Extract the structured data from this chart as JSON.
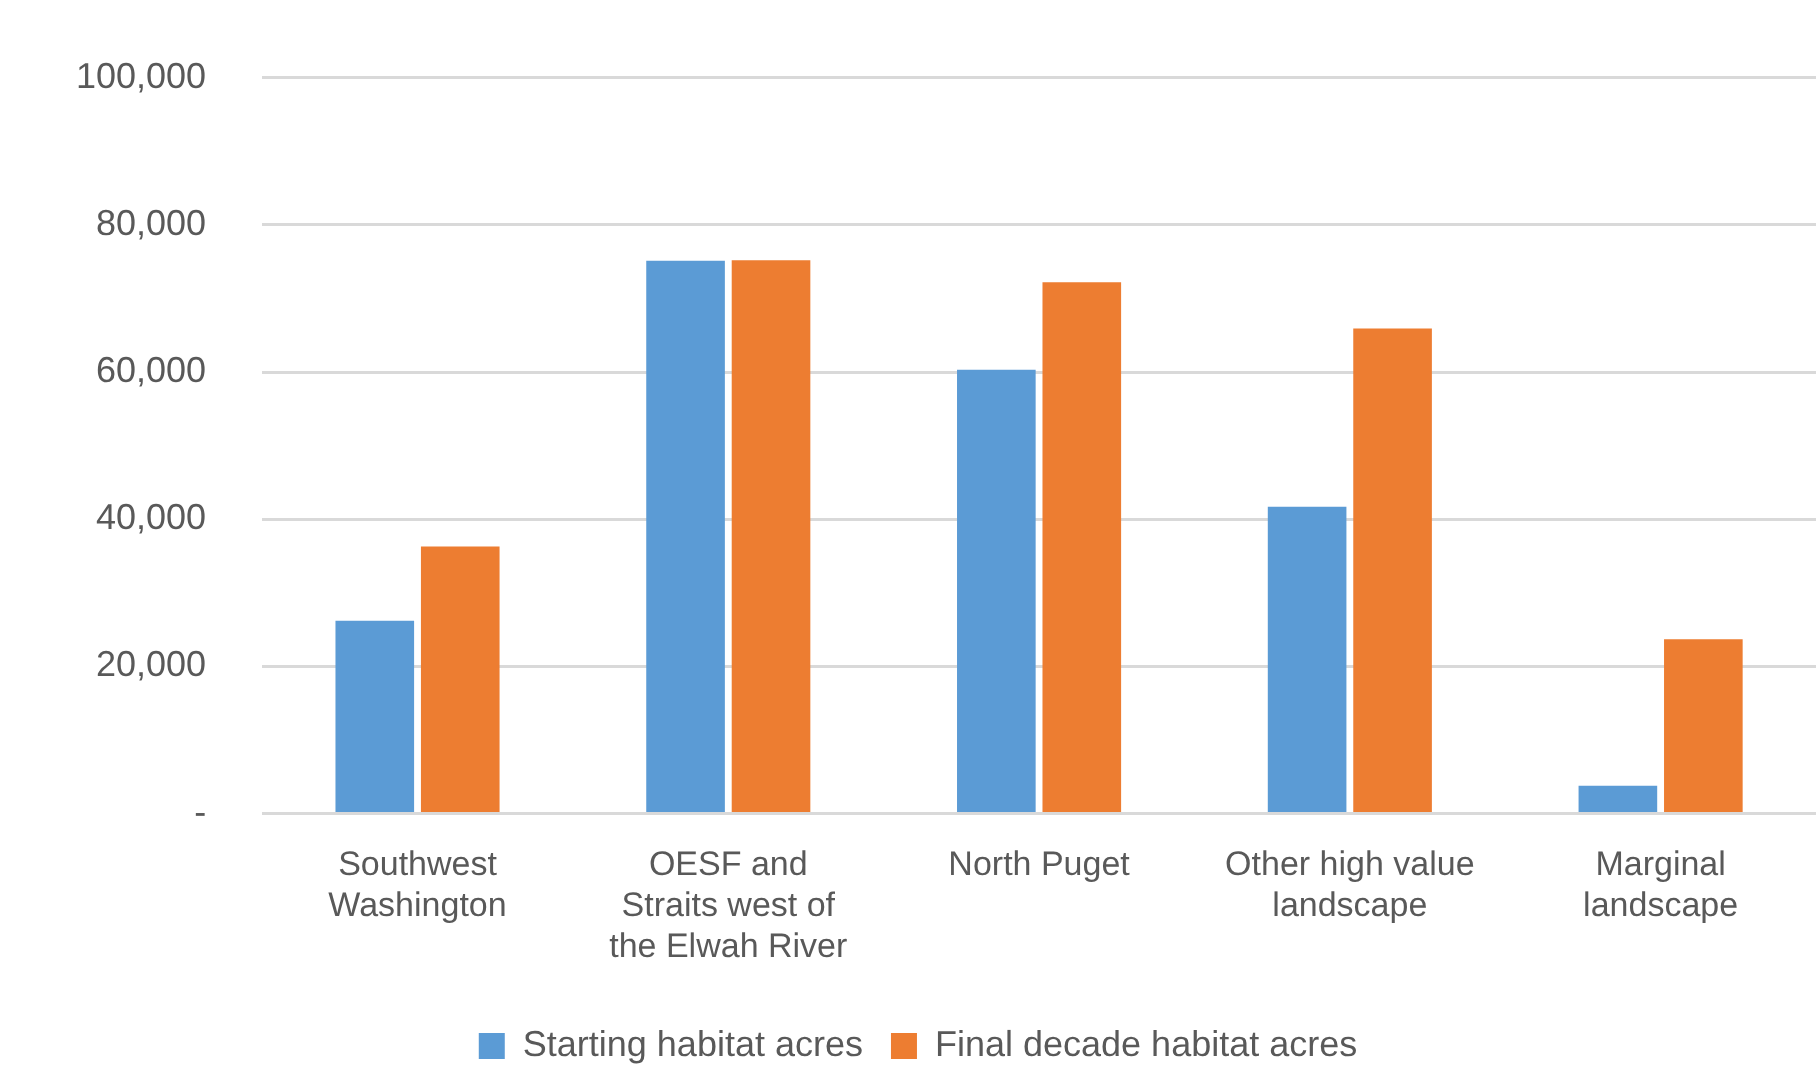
{
  "chart_data": {
    "type": "bar",
    "categories": [
      "Southwest Washington",
      "OESF and Straits west of the Elwah River",
      "North Puget",
      "Other high value landscape",
      "Marginal landscape"
    ],
    "series": [
      {
        "name": "Starting habitat acres",
        "color": "#5b9bd5",
        "values": [
          26200,
          75100,
          60300,
          41700,
          3800
        ]
      },
      {
        "name": "Final decade habitat acres",
        "color": "#ed7d31",
        "values": [
          36300,
          75200,
          72200,
          65900,
          23700
        ]
      }
    ],
    "ylim": [
      0,
      100000
    ],
    "yticks": [
      {
        "value": 0,
        "label": "-"
      },
      {
        "value": 20000,
        "label": "20,000"
      },
      {
        "value": 40000,
        "label": "40,000"
      },
      {
        "value": 60000,
        "label": "60,000"
      },
      {
        "value": 80000,
        "label": "80,000"
      },
      {
        "value": 100000,
        "label": "100,000"
      }
    ],
    "grid": "y",
    "legend": "bottom"
  }
}
